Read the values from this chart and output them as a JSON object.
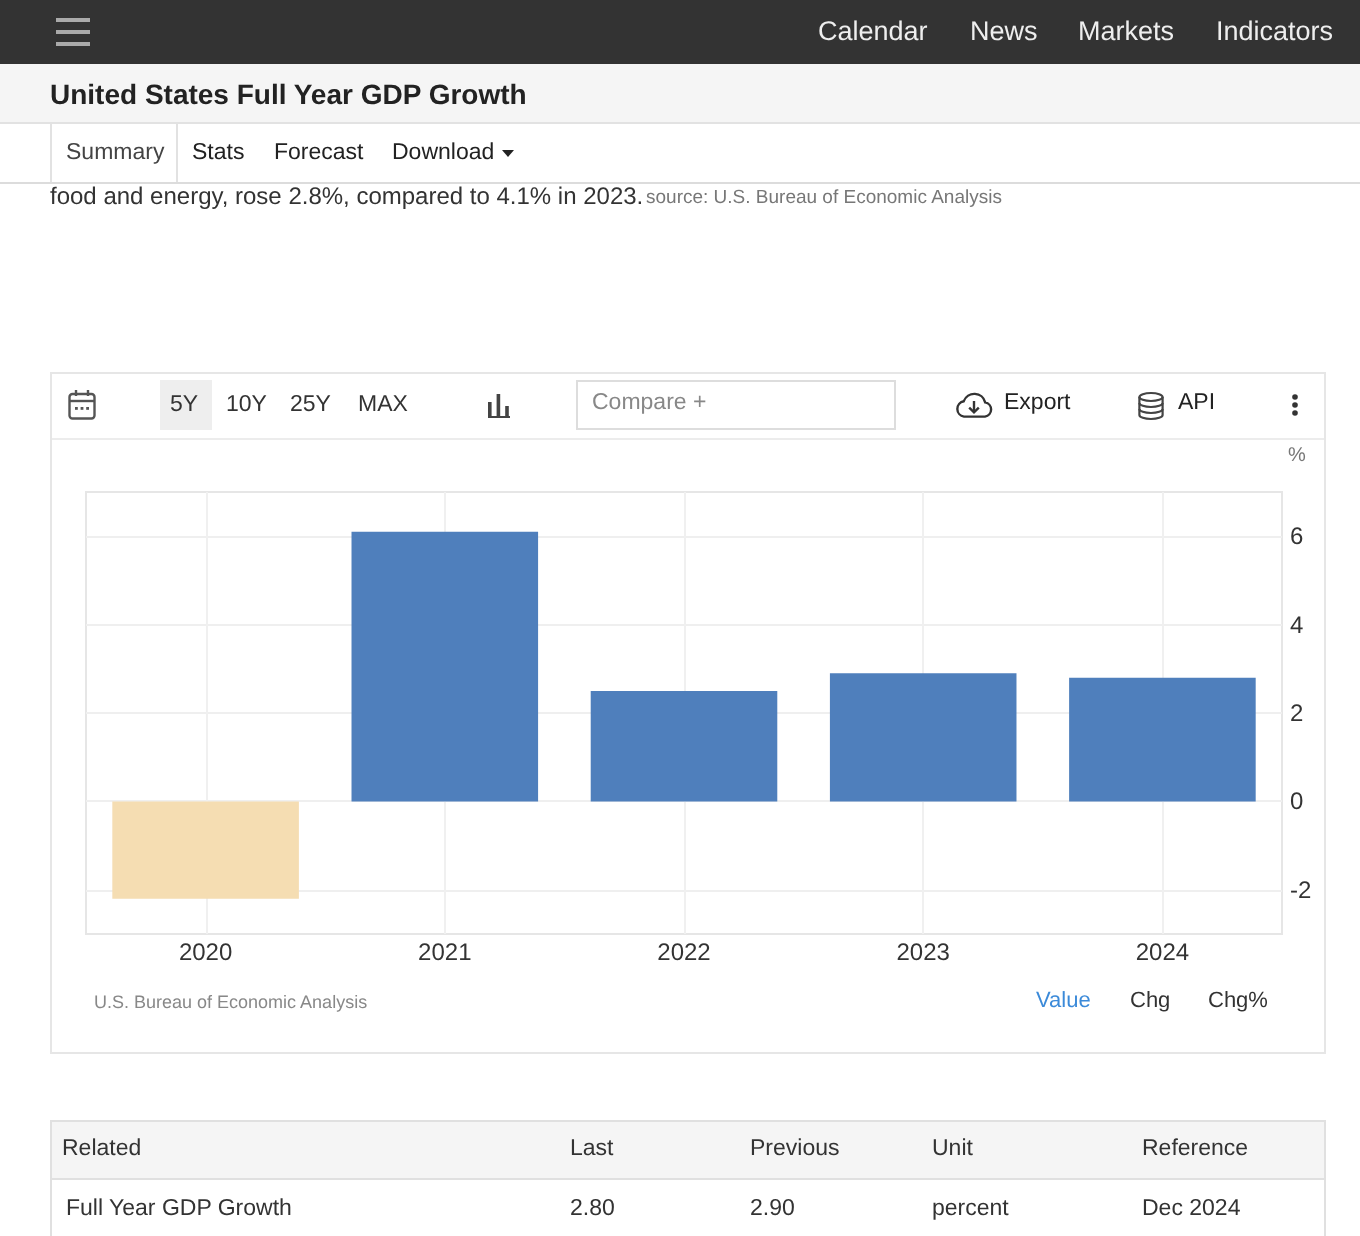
{
  "chart_data": [
    {
      "type": "bar",
      "title": "United States Full Year GDP Growth",
      "ylabel": "%",
      "categories": [
        "2020",
        "2021",
        "2022",
        "2023",
        "2024"
      ],
      "values": [
        -2.2,
        6.1,
        2.5,
        2.9,
        2.8
      ],
      "colors": [
        "#f5ddb2",
        "#4f7fbc",
        "#4f7fbc",
        "#4f7fbc",
        "#4f7fbc"
      ],
      "ylim": [
        -3,
        7
      ],
      "yticks": [
        -2,
        0,
        2,
        4,
        6
      ],
      "grid": true,
      "annotations": [
        "Calendar",
        "News",
        "Markets",
        "Indicators",
        "Summary",
        "Stats",
        "Forecast",
        "Download",
        "food and energy, rose 2.8%, compared to 4.1% in 2023.",
        "source: U.S. Bureau of Economic Analysis",
        "5Y",
        "10Y",
        "25Y",
        "MAX",
        "Compare +",
        "Export",
        "API",
        "U.S. Bureau of Economic Analysis",
        "Value",
        "Chg",
        "Chg%"
      ]
    },
    {
      "type": "other",
      "annotations": [
        "Related",
        "Last",
        "Previous",
        "Unit",
        "Reference",
        "Full Year GDP Growth",
        "2.80",
        "2.90",
        "percent",
        "Dec 2024"
      ]
    }
  ]
}
